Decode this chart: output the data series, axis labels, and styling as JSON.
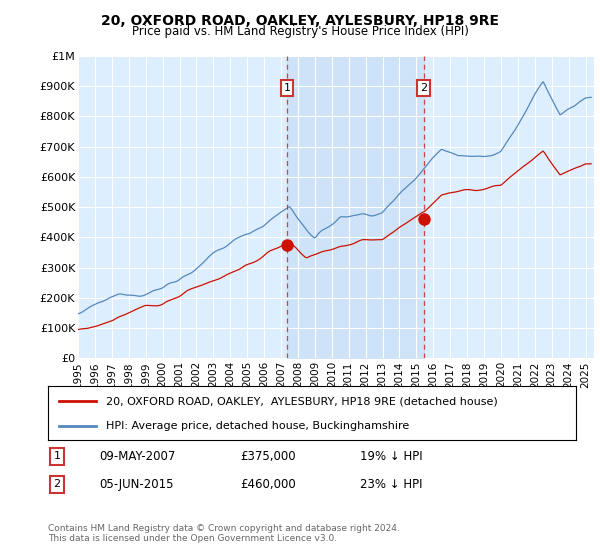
{
  "title": "20, OXFORD ROAD, OAKLEY, AYLESBURY, HP18 9RE",
  "subtitle": "Price paid vs. HM Land Registry's House Price Index (HPI)",
  "background_color": "#ffffff",
  "plot_bg_color": "#ddeeff",
  "shade_color": "#c8dff5",
  "grid_color": "#ffffff",
  "hpi_color": "#5588bb",
  "sale_color": "#cc1100",
  "ylim": [
    0,
    1000000
  ],
  "yticks": [
    0,
    100000,
    200000,
    300000,
    400000,
    500000,
    600000,
    700000,
    800000,
    900000,
    1000000
  ],
  "ytick_labels": [
    "£0",
    "£100K",
    "£200K",
    "£300K",
    "£400K",
    "£500K",
    "£600K",
    "£700K",
    "£800K",
    "£900K",
    "£1M"
  ],
  "xlim_start": 1995.0,
  "xlim_end": 2025.5,
  "sale1_x": 2007.36,
  "sale1_y": 375000,
  "sale1_label": "1",
  "sale2_x": 2015.43,
  "sale2_y": 460000,
  "sale2_label": "2",
  "legend_line1": "20, OXFORD ROAD, OAKLEY,  AYLESBURY, HP18 9RE (detached house)",
  "legend_line2": "HPI: Average price, detached house, Buckinghamshire",
  "note1_label": "1",
  "note1_date": "09-MAY-2007",
  "note1_price": "£375,000",
  "note1_hpi": "19% ↓ HPI",
  "note2_label": "2",
  "note2_date": "05-JUN-2015",
  "note2_price": "£460,000",
  "note2_hpi": "23% ↓ HPI",
  "copyright": "Contains HM Land Registry data © Crown copyright and database right 2024.\nThis data is licensed under the Open Government Licence v3.0."
}
